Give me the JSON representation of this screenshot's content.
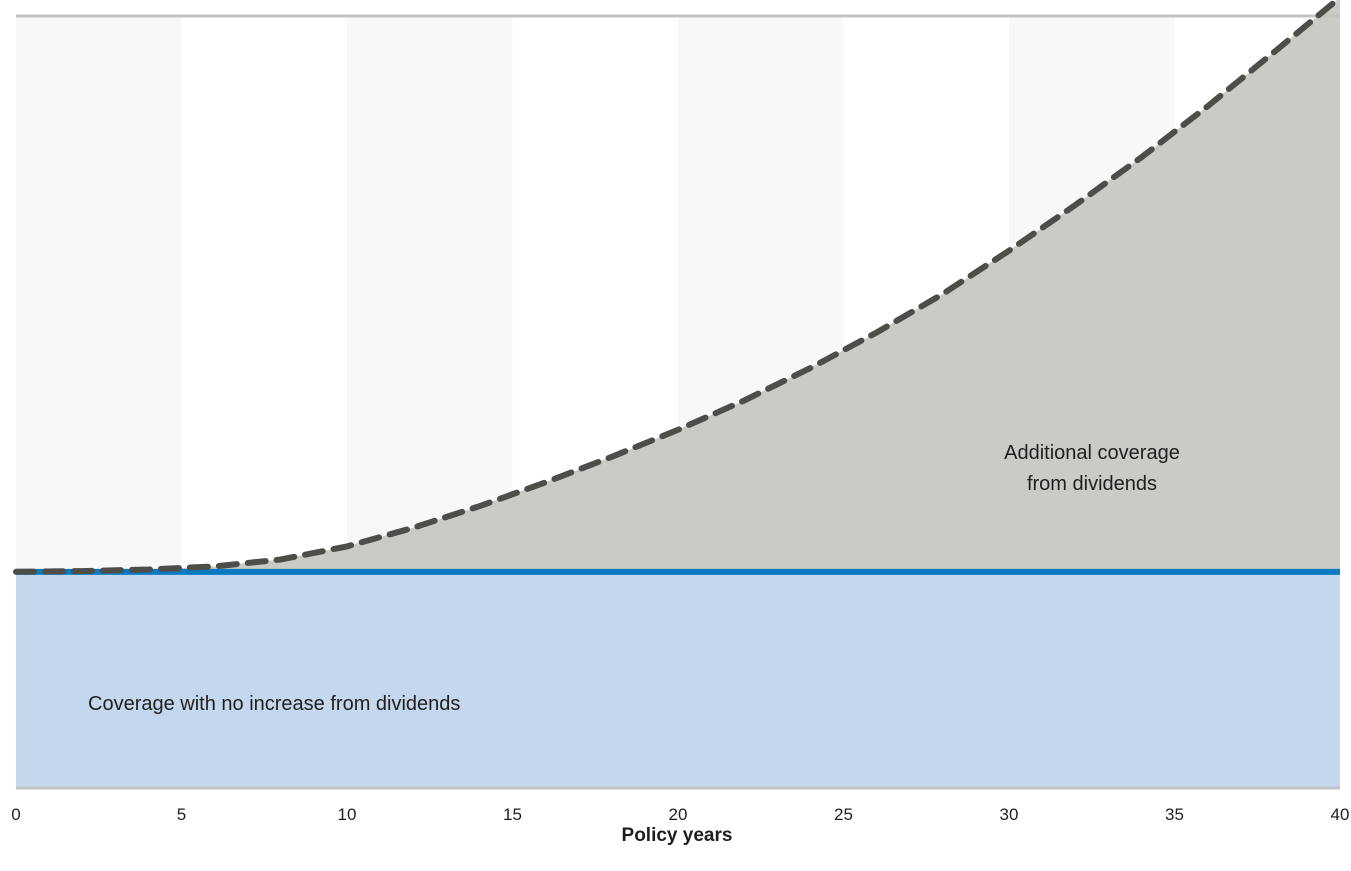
{
  "chart_data": {
    "type": "area",
    "x_ticks": [
      0,
      5,
      10,
      15,
      20,
      25,
      30,
      35,
      40
    ],
    "xlim": [
      0,
      40
    ],
    "ylim": [
      0,
      100
    ],
    "xlabel": "Policy years",
    "ylabel": "",
    "title": "",
    "grid": "alternating vertical bands every 5 years",
    "series": [
      {
        "style": "solid",
        "color": "#0a7bc2",
        "fill": "#c5d7ec",
        "x": [
          0,
          40
        ],
        "y": [
          28,
          28
        ]
      },
      {
        "style": "dashed",
        "color": "#4d4d4a",
        "fill": "#cbcac5",
        "x": [
          0,
          2,
          4,
          6,
          8,
          10,
          12,
          14,
          16,
          18,
          20,
          22,
          24,
          26,
          28,
          30,
          32,
          34,
          36,
          38,
          40
        ],
        "y": [
          28,
          28.1,
          28.3,
          28.7,
          29.6,
          31.3,
          33.7,
          36.5,
          39.6,
          42.9,
          46.4,
          50.2,
          54.4,
          59.0,
          64.0,
          69.6,
          75.5,
          81.7,
          88.3,
          95.3,
          102.4
        ]
      }
    ],
    "annotations": {
      "base_area": "Coverage with no increase from dividends",
      "dividend_area_line1": "Additional coverage",
      "dividend_area_line2": "from dividends"
    },
    "colors": {
      "band": "#f8f8f6",
      "axis_line": "#c3c3c3"
    }
  }
}
